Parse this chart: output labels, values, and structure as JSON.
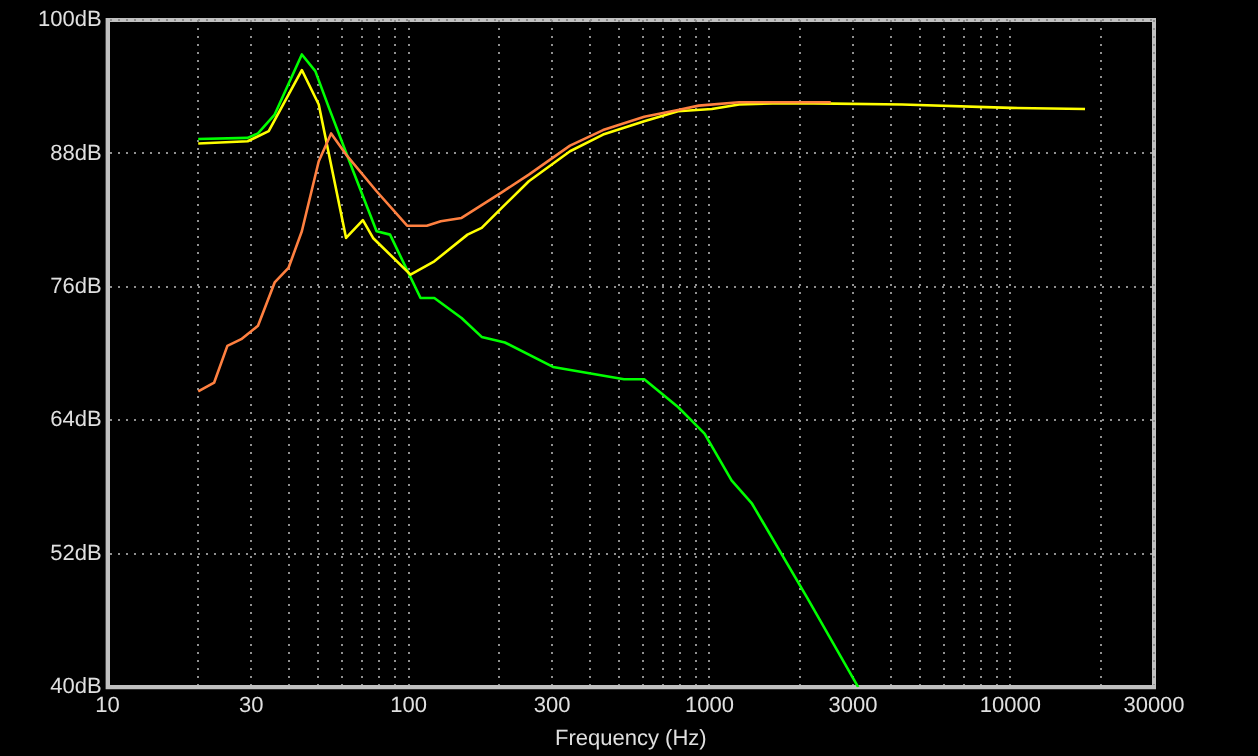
{
  "chart_data": {
    "type": "line",
    "xlabel": "Frequency (Hz)",
    "log": "x",
    "grid": true,
    "marker": "none",
    "line_style": "solid",
    "xlim": [
      10,
      30000
    ],
    "ylim": [
      40,
      100
    ],
    "xticks": [
      10,
      {
        "value": 20,
        "label": null
      },
      30,
      {
        "value": 40,
        "label": null
      },
      {
        "value": 50,
        "label": null
      },
      {
        "value": 60,
        "label": null
      },
      {
        "value": 70,
        "label": null
      },
      {
        "value": 80,
        "label": null
      },
      {
        "value": 90,
        "label": null
      },
      100,
      {
        "value": 200,
        "label": null
      },
      300,
      {
        "value": 400,
        "label": null
      },
      {
        "value": 500,
        "label": null
      },
      {
        "value": 600,
        "label": null
      },
      {
        "value": 700,
        "label": null
      },
      {
        "value": 800,
        "label": null
      },
      {
        "value": 900,
        "label": null
      },
      1000,
      {
        "value": 2000,
        "label": null
      },
      3000,
      {
        "value": 4000,
        "label": null
      },
      {
        "value": 5000,
        "label": null
      },
      {
        "value": 6000,
        "label": null
      },
      {
        "value": 7000,
        "label": null
      },
      {
        "value": 8000,
        "label": null
      },
      {
        "value": 9000,
        "label": null
      },
      10000,
      {
        "value": 20000,
        "label": null
      },
      30000
    ],
    "yticks": [
      {
        "value": 40,
        "label": "40dB"
      },
      {
        "value": 52,
        "label": "52dB"
      },
      {
        "value": 64,
        "label": "64dB"
      },
      {
        "value": 76,
        "label": "76dB"
      },
      {
        "value": 88,
        "label": "88dB"
      },
      {
        "value": 100,
        "label": "100dB"
      }
    ],
    "series": [
      {
        "color": "#ff8040",
        "x": [
          20,
          22.6,
          25,
          27.8,
          31.6,
          35.9,
          39.9,
          44.2,
          50.3,
          55.3,
          62,
          78.3,
          98.9,
          115,
          128,
          150,
          204,
          251,
          344,
          443,
          607,
          786,
          921,
          1255,
          2530
        ],
        "values": [
          66.6,
          67.4,
          70.7,
          71.3,
          72.5,
          76.4,
          77.7,
          81.0,
          87.3,
          89.8,
          87.9,
          84.6,
          81.5,
          81.5,
          81.9,
          82.2,
          84.5,
          86.1,
          88.7,
          90.1,
          91.3,
          91.9,
          92.3,
          92.6,
          92.6
        ]
      },
      {
        "color": "#ffff00",
        "x": [
          20,
          29.2,
          34.3,
          44.2,
          50.3,
          62,
          70.5,
          76.2,
          101.5,
          121.8,
          157,
          175,
          204,
          251,
          344,
          443,
          607,
          786,
          1018,
          1255,
          1620,
          2220,
          4370,
          10000,
          17700
        ],
        "values": [
          88.9,
          89.1,
          90.0,
          95.5,
          92.4,
          80.4,
          82.0,
          80.4,
          77.1,
          78.3,
          80.7,
          81.3,
          83.1,
          85.5,
          88.2,
          89.7,
          90.9,
          91.8,
          92.0,
          92.4,
          92.5,
          92.5,
          92.4,
          92.1,
          92.0
        ]
      },
      {
        "color": "#00ff00",
        "x": [
          20,
          29.2,
          31.6,
          35.9,
          44.2,
          49,
          54.4,
          65.5,
          78.3,
          86.8,
          109.6,
          121.8,
          150,
          175,
          209,
          302,
          520,
          607,
          786,
          963,
          1184,
          1385,
          2106,
          3120
        ],
        "values": [
          89.3,
          89.4,
          89.8,
          91.5,
          96.9,
          95.4,
          92.1,
          86.4,
          81.0,
          80.7,
          75.0,
          75.0,
          73.2,
          71.5,
          71.0,
          68.8,
          67.7,
          67.7,
          65.2,
          62.8,
          58.6,
          56.5,
          48.1,
          40.0
        ]
      }
    ]
  }
}
